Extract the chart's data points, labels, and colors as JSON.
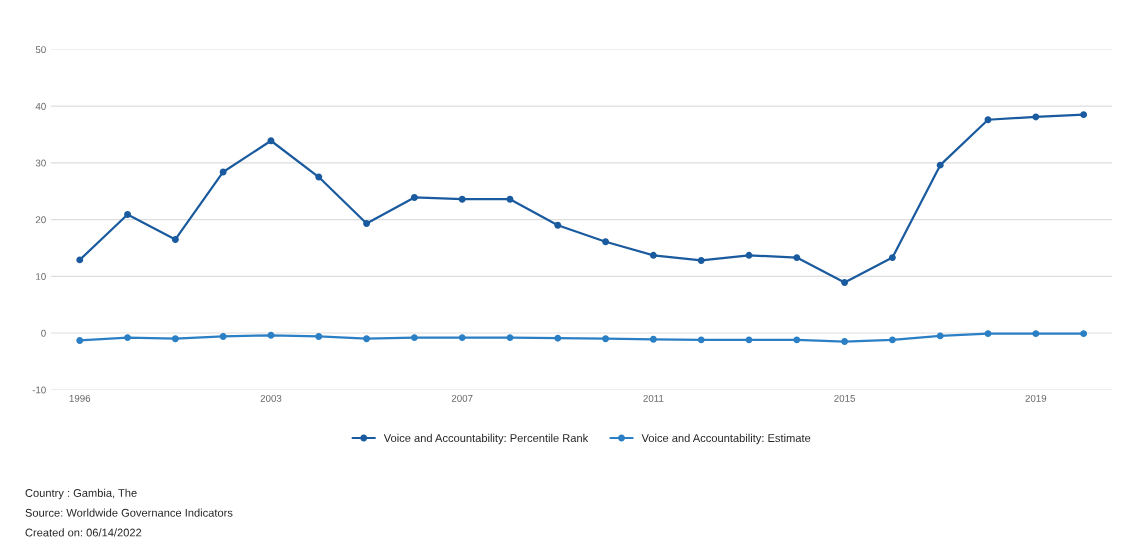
{
  "chart_data": {
    "type": "line",
    "categories": [
      "1996",
      null,
      null,
      null,
      "2003",
      null,
      null,
      null,
      "2007",
      null,
      null,
      null,
      "2011",
      null,
      null,
      null,
      "2015",
      null,
      null,
      null,
      "2019",
      null
    ],
    "series": [
      {
        "name": "Voice and Accountability: Percentile Rank",
        "color": "#1a5a9e",
        "values": [
          12.9,
          20.9,
          16.5,
          28.4,
          33.9,
          27.5,
          19.3,
          23.9,
          23.6,
          23.6,
          19.0,
          16.1,
          13.7,
          12.8,
          13.7,
          13.3,
          8.9,
          13.3,
          29.6,
          37.6,
          38.1,
          38.5
        ]
      },
      {
        "name": "Voice and Accountability: Estimate",
        "color": "#2b7fc4",
        "values": [
          -1.3,
          -0.8,
          -1.0,
          -0.6,
          -0.4,
          -0.6,
          -1.0,
          -0.8,
          -0.8,
          -0.8,
          -0.9,
          -1.0,
          -1.1,
          -1.2,
          -1.2,
          -1.2,
          -1.5,
          -1.2,
          -0.5,
          -0.1,
          -0.1,
          -0.1
        ]
      }
    ],
    "ylim": [
      -10,
      50
    ],
    "yticks": [
      -10,
      0,
      10,
      20,
      30,
      40,
      50
    ],
    "grid": "y",
    "legend": "bottom",
    "marker": "circle",
    "line_style": "solid",
    "annotations": [
      "Country : Gambia, The",
      "Source: Worldwide Governance Indicators",
      "Created on: 06/14/2022"
    ]
  }
}
